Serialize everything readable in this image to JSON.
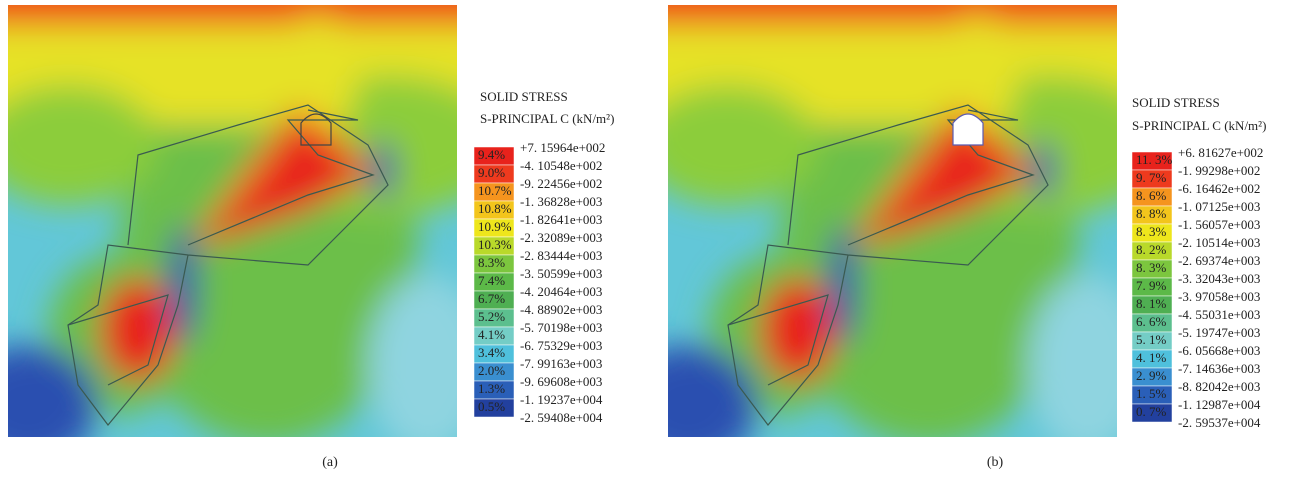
{
  "panels": [
    {
      "legend": {
        "title_lines": [
          "SOLID STRESS",
          "S-PRINCIPAL C (kN/m²)"
        ],
        "percents": [
          "9.4%",
          "9.0%",
          "10.7%",
          "10.8%",
          "10.9%",
          "10.3%",
          "8.3%",
          "7.4%",
          "6.7%",
          "5.2%",
          "4.1%",
          "3.4%",
          "2.0%",
          "1.3%",
          "0.5%"
        ],
        "values": [
          "+7. 15964e+002",
          "-4. 10548e+002",
          "-9. 22456e+002",
          "-1. 36828e+003",
          "-1. 82641e+003",
          "-2. 32089e+003",
          "-2. 83444e+003",
          "-3. 50599e+003",
          "-4. 20464e+003",
          "-4. 88902e+003",
          "-5. 70198e+003",
          "-6. 75329e+003",
          "-7. 99163e+003",
          "-9. 69608e+003",
          "-1. 19237e+004",
          "-2. 59408e+004"
        ]
      },
      "caption": "(a)"
    },
    {
      "legend": {
        "title_lines": [
          "SOLID STRESS",
          "S-PRINCIPAL C (kN/m²)"
        ],
        "percents": [
          "11. 3%",
          "9. 7%",
          "8. 6%",
          "8. 8%",
          "8. 3%",
          "8. 2%",
          "8. 3%",
          "7. 9%",
          "8. 1%",
          "6. 6%",
          "5. 1%",
          "4. 1%",
          "2. 9%",
          "1. 5%",
          "0. 7%"
        ],
        "values": [
          "+6. 81627e+002",
          "-1. 99298e+002",
          "-6. 16462e+002",
          "-1. 07125e+003",
          "-1. 56057e+003",
          "-2. 10514e+003",
          "-2. 69374e+003",
          "-3. 32043e+003",
          "-3. 97058e+003",
          "-4. 55031e+003",
          "-5. 19747e+003",
          "-6. 05668e+003",
          "-7. 14636e+003",
          "-8. 82042e+003",
          "-1. 12987e+004",
          "-2. 59537e+004"
        ]
      },
      "caption": "(b)"
    }
  ]
}
